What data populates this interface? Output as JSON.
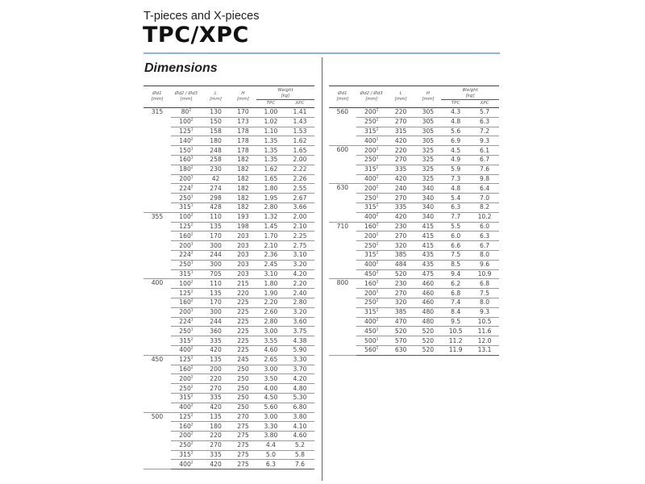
{
  "header": {
    "subtitle": "T-pieces and X-pieces",
    "title": "TPC/XPC",
    "section": "Dimensions",
    "accent_color": "#8fb4dc"
  },
  "table_headers": {
    "d1": "Ød1",
    "d1_unit": "[mm]",
    "d2": "Ød2 / Ød3",
    "d2_unit": "[mm]",
    "L": "L",
    "L_unit": "[mm]",
    "H": "H",
    "H_unit": "[mm]",
    "weight": "Weight",
    "weight_unit": "[kg]",
    "tpc": "TPC",
    "xpc": "XPC"
  },
  "left_table": [
    {
      "d1": "315",
      "rows": [
        [
          "80",
          "2",
          "130",
          "170",
          "1.00",
          "1.41"
        ],
        [
          "100",
          "2",
          "150",
          "173",
          "1.02",
          "1.43"
        ],
        [
          "125",
          "1",
          "158",
          "178",
          "1.10",
          "1.53"
        ],
        [
          "140",
          "2",
          "180",
          "178",
          "1.35",
          "1.62"
        ],
        [
          "150",
          "1",
          "248",
          "178",
          "1.35",
          "1.65"
        ],
        [
          "160",
          "1",
          "258",
          "182",
          "1.35",
          "2.00"
        ],
        [
          "180",
          "2",
          "230",
          "182",
          "1.62",
          "2.22"
        ],
        [
          "200",
          "1",
          "42",
          "182",
          "1.65",
          "2.26"
        ],
        [
          "224",
          "2",
          "274",
          "182",
          "1.80",
          "2.55"
        ],
        [
          "250",
          "1",
          "298",
          "182",
          "1.95",
          "2.67"
        ],
        [
          "315",
          "1",
          "428",
          "182",
          "2.80",
          "3.66"
        ]
      ]
    },
    {
      "d1": "355",
      "rows": [
        [
          "100",
          "2",
          "110",
          "193",
          "1.32",
          "2.00"
        ],
        [
          "125",
          "2",
          "135",
          "198",
          "1.45",
          "2.10"
        ],
        [
          "160",
          "2",
          "170",
          "203",
          "1.70",
          "2.25"
        ],
        [
          "200",
          "1",
          "300",
          "203",
          "2.10",
          "2.75"
        ],
        [
          "224",
          "2",
          "244",
          "203",
          "2.36",
          "3.10"
        ],
        [
          "250",
          "1",
          "300",
          "203",
          "2.45",
          "3.20"
        ],
        [
          "315",
          "1",
          "705",
          "203",
          "3.10",
          "4.20"
        ]
      ]
    },
    {
      "d1": "400",
      "rows": [
        [
          "100",
          "2",
          "110",
          "215",
          "1.80",
          "2.20"
        ],
        [
          "125",
          "2",
          "135",
          "220",
          "1.90",
          "2.40"
        ],
        [
          "160",
          "2",
          "170",
          "225",
          "2.20",
          "2.80"
        ],
        [
          "200",
          "1",
          "300",
          "225",
          "2.60",
          "3.20"
        ],
        [
          "224",
          "1",
          "244",
          "225",
          "2.80",
          "3.60"
        ],
        [
          "250",
          "1",
          "360",
          "225",
          "3.00",
          "3.75"
        ],
        [
          "315",
          "2",
          "335",
          "225",
          "3.55",
          "4.38"
        ],
        [
          "400",
          "2",
          "420",
          "225",
          "4.60",
          "5.90"
        ]
      ]
    },
    {
      "d1": "450",
      "rows": [
        [
          "125",
          "2",
          "135",
          "245",
          "2.65",
          "3.30"
        ],
        [
          "160",
          "2",
          "200",
          "250",
          "3.00",
          "3.70"
        ],
        [
          "200",
          "2",
          "220",
          "250",
          "3.50",
          "4.20"
        ],
        [
          "250",
          "2",
          "270",
          "250",
          "4.00",
          "4.80"
        ],
        [
          "315",
          "2",
          "335",
          "250",
          "4.50",
          "5.30"
        ],
        [
          "400",
          "2",
          "420",
          "250",
          "5.60",
          "6.80"
        ]
      ]
    },
    {
      "d1": "500",
      "rows": [
        [
          "125",
          "2",
          "135",
          "270",
          "3.00",
          "3.80"
        ],
        [
          "160",
          "2",
          "180",
          "275",
          "3.30",
          "4.10"
        ],
        [
          "200",
          "2",
          "220",
          "275",
          "3.80",
          "4.60"
        ],
        [
          "250",
          "2",
          "270",
          "275",
          "4.4",
          "5.2"
        ],
        [
          "315",
          "2",
          "335",
          "275",
          "5.0",
          "5.8"
        ],
        [
          "400",
          "2",
          "420",
          "275",
          "6.3",
          "7.6"
        ]
      ]
    }
  ],
  "right_table": [
    {
      "d1": "560",
      "rows": [
        [
          "200",
          "2",
          "220",
          "305",
          "4.3",
          "5.7"
        ],
        [
          "250",
          "2",
          "270",
          "305",
          "4.8",
          "6.3"
        ],
        [
          "315",
          "2",
          "315",
          "305",
          "5.6",
          "7.2"
        ],
        [
          "400",
          "2",
          "420",
          "305",
          "6.9",
          "9.3"
        ]
      ]
    },
    {
      "d1": "600",
      "rows": [
        [
          "200",
          "2",
          "220",
          "325",
          "4.5",
          "6.1"
        ],
        [
          "250",
          "2",
          "270",
          "325",
          "4.9",
          "6.7"
        ],
        [
          "315",
          "2",
          "335",
          "325",
          "5.9",
          "7.6"
        ],
        [
          "400",
          "2",
          "420",
          "325",
          "7.3",
          "9.8"
        ]
      ]
    },
    {
      "d1": "630",
      "rows": [
        [
          "200",
          "2",
          "240",
          "340",
          "4.8",
          "6.4"
        ],
        [
          "250",
          "2",
          "270",
          "340",
          "5.4",
          "7.0"
        ],
        [
          "315",
          "2",
          "335",
          "340",
          "6.3",
          "8.2"
        ],
        [
          "400",
          "2",
          "420",
          "340",
          "7.7",
          "10.2"
        ]
      ]
    },
    {
      "d1": "710",
      "rows": [
        [
          "160",
          "2",
          "230",
          "415",
          "5.5",
          "6.0"
        ],
        [
          "200",
          "2",
          "270",
          "415",
          "6.0",
          "6.3"
        ],
        [
          "250",
          "2",
          "320",
          "415",
          "6.6",
          "6.7"
        ],
        [
          "315",
          "2",
          "385",
          "435",
          "7.5",
          "8.0"
        ],
        [
          "400",
          "2",
          "484",
          "435",
          "8.5",
          "9.6"
        ],
        [
          "450",
          "2",
          "520",
          "475",
          "9.4",
          "10.9"
        ]
      ]
    },
    {
      "d1": "800",
      "rows": [
        [
          "160",
          "2",
          "230",
          "460",
          "6.2",
          "6.8"
        ],
        [
          "200",
          "2",
          "270",
          "460",
          "6.8",
          "7.5"
        ],
        [
          "250",
          "2",
          "320",
          "460",
          "7.4",
          "8.0"
        ],
        [
          "315",
          "2",
          "385",
          "480",
          "8.4",
          "9.3"
        ],
        [
          "400",
          "2",
          "470",
          "480",
          "9.5",
          "10.5"
        ],
        [
          "450",
          "2",
          "520",
          "520",
          "10.5",
          "11.6"
        ],
        [
          "500",
          "2",
          "570",
          "520",
          "11.2",
          "12.0"
        ],
        [
          "560",
          "2",
          "630",
          "520",
          "11.9",
          "13.1"
        ]
      ]
    }
  ]
}
